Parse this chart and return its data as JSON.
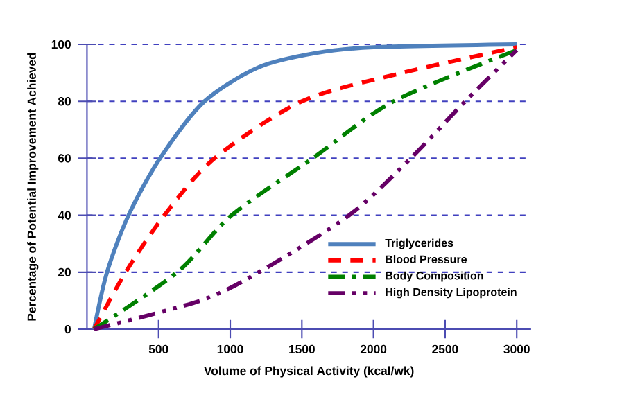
{
  "chart_data": {
    "type": "line",
    "xlabel": "Volume of Physical Activity (kcal/wk)",
    "ylabel": "Percentage of Potential Improvement Achieved",
    "xlim": [
      0,
      3100
    ],
    "ylim": [
      0,
      100
    ],
    "xticks": [
      500,
      1000,
      1500,
      2000,
      2500,
      3000
    ],
    "yticks": [
      0,
      20,
      40,
      60,
      80,
      100
    ],
    "grid": "y",
    "legend": "bottom right",
    "series": [
      {
        "name": "Triglycerides",
        "color": "#4f81bd",
        "line_style": "solid",
        "x": [
          50,
          140,
          290,
          510,
          820,
          1200,
          1600,
          2000,
          3000
        ],
        "values": [
          0,
          20,
          40,
          60,
          80,
          92,
          97,
          99,
          100
        ]
      },
      {
        "name": "Blood Pressure",
        "color": "#ff0000",
        "line_style": "dashed",
        "x": [
          50,
          270,
          540,
          890,
          1500,
          2200,
          3000
        ],
        "values": [
          0,
          20,
          40,
          60,
          80,
          90,
          99
        ]
      },
      {
        "name": "Body Composition",
        "color": "#008000",
        "line_style": "dashdot",
        "x": [
          50,
          630,
          1010,
          1575,
          2140,
          3000
        ],
        "values": [
          0,
          20,
          40,
          60,
          80,
          98
        ]
      },
      {
        "name": "High Density Lipoprotein",
        "color": "#660066",
        "line_style": "dashdotdot",
        "x": [
          50,
          790,
          1200,
          1830,
          2260,
          2640,
          3000
        ],
        "values": [
          0,
          10,
          20,
          40,
          60,
          80,
          98
        ]
      }
    ]
  }
}
